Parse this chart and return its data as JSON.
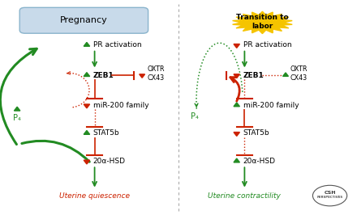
{
  "title_left": "Pregnancy",
  "title_right": "Transition to\nlabor",
  "outcome_left": "Uterine quiescence",
  "outcome_right": "Uterine contractility",
  "green": "#228B22",
  "red": "#cc2200",
  "bg_color": "#ffffff",
  "box_left_color": "#c8daea",
  "box_left_edge": "#8ab4cc",
  "starburst_color": "#f5c400",
  "figsize": [
    4.4,
    2.66
  ],
  "dpi": 100
}
